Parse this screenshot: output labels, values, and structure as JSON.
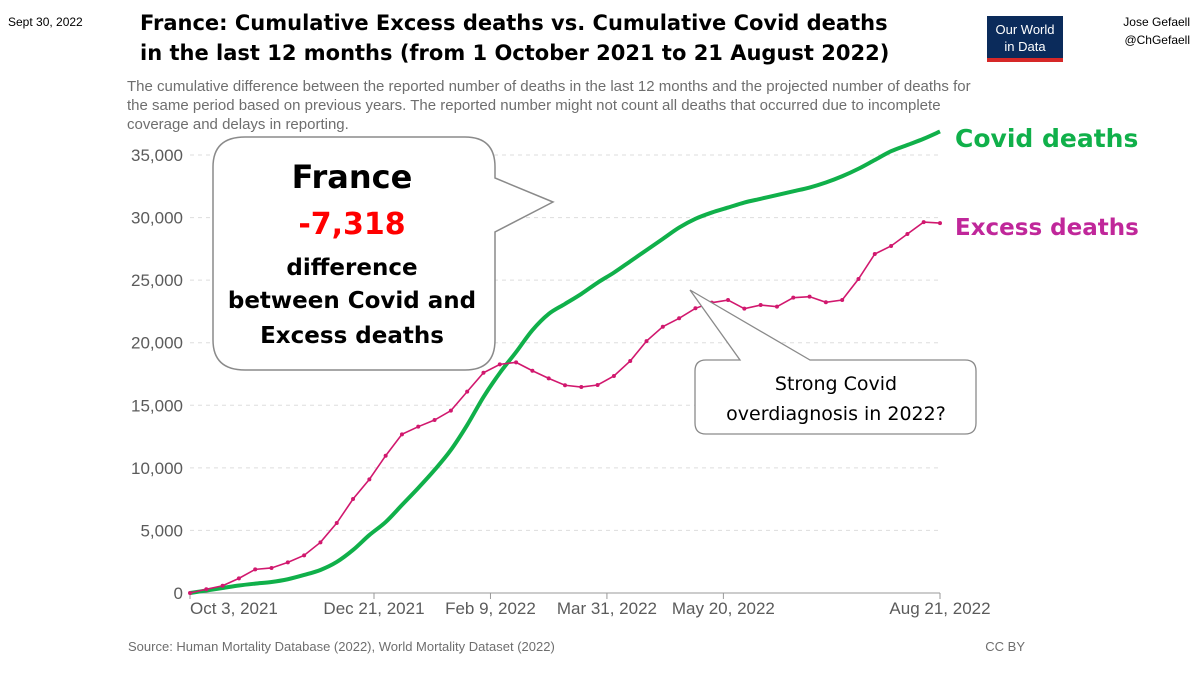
{
  "header": {
    "date": "Sept 30, 2022",
    "title_line1": "France: Cumulative Excess deaths vs. Cumulative Covid deaths",
    "title_line2": "in the last 12 months (from 1 October 2021 to 21 August 2022)",
    "author": "Jose Gefaell",
    "handle": "@ChGefaell",
    "logo_line1": "Our World",
    "logo_line2": "in Data",
    "subtitle": [
      "The cumulative difference between the reported number of deaths in the last 12 months and the projected number of deaths for",
      "the same period based on previous years. The reported number might not count all deaths that occurred due to incomplete",
      "coverage and delays in reporting."
    ]
  },
  "callout_main": {
    "country": "France",
    "value": "-7,318",
    "line1": "difference",
    "line2": "between Covid and",
    "line3": "Excess deaths"
  },
  "callout_note": {
    "line1": "Strong Covid",
    "line2": "overdiagnosis in 2022?"
  },
  "footer": {
    "source": "Source: Human Mortality Database (2022), World Mortality Dataset (2022)",
    "license": "CC BY"
  },
  "colors": {
    "covid": "#10b04a",
    "excess": "#d1186e",
    "logo_bg": "#0b2b5b",
    "logo_bar": "#d62828",
    "value": "#ff0000"
  },
  "chart_data": {
    "type": "line",
    "title": "France: Cumulative Excess deaths vs. Cumulative Covid deaths in the last 12 months (from 1 October 2021 to 21 August 2022)",
    "xlabel": "",
    "ylabel": "",
    "x_unit": "days since Oct 3, 2021 (weekly)",
    "xlim": [
      0,
      322
    ],
    "ylim": [
      0,
      35000
    ],
    "yticks": [
      0,
      5000,
      10000,
      15000,
      20000,
      25000,
      30000,
      35000
    ],
    "ytick_labels": [
      "0",
      "5,000",
      "10,000",
      "15,000",
      "20,000",
      "25,000",
      "30,000",
      "35,000"
    ],
    "xticks": [
      0,
      79,
      129,
      179,
      229,
      322
    ],
    "xtick_labels": [
      "Oct 3, 2021",
      "Dec 21, 2021",
      "Feb 9, 2022",
      "Mar 31, 2022",
      "May 20, 2022",
      "Aug 21, 2022"
    ],
    "grid": true,
    "legend": "right (inline labels)",
    "series": [
      {
        "name": "Covid deaths",
        "values": [
          0,
          200,
          400,
          600,
          750,
          880,
          1100,
          1440,
          1840,
          2480,
          3440,
          4630,
          5670,
          7030,
          8390,
          9830,
          11430,
          13420,
          15660,
          17580,
          19250,
          21000,
          22300,
          23100,
          23900,
          24800,
          25600,
          26500,
          27400,
          28300,
          29200,
          29900,
          30400,
          30800,
          31200,
          31500,
          31800,
          32100,
          32400,
          32800,
          33300,
          33900,
          34600,
          35300,
          35800,
          36300,
          36880
        ]
      },
      {
        "name": "Excess deaths",
        "values": [
          0,
          300,
          580,
          1170,
          1890,
          2000,
          2450,
          3010,
          4050,
          5590,
          7510,
          9080,
          10970,
          12680,
          13290,
          13820,
          14570,
          16090,
          17600,
          18270,
          18430,
          17760,
          17150,
          16600,
          16460,
          16620,
          17340,
          18540,
          20130,
          21280,
          21950,
          22750,
          23200,
          23410,
          22720,
          23010,
          22880,
          23600,
          23680,
          23230,
          23410,
          25090,
          27090,
          27730,
          28690,
          29640,
          29560
        ]
      }
    ]
  }
}
